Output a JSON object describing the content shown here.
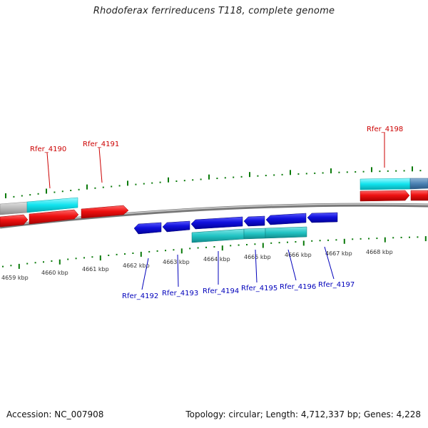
{
  "title": "Rhodoferax ferrireducens T118, complete genome",
  "footer": {
    "accession": "Accession: NC_007908",
    "stats": "Topology: circular; Length: 4,712,337 bp; Genes: 4,228"
  },
  "colors": {
    "backbone": "#8c8c8c",
    "tick": "#0a7a0a",
    "forward_gene": "#ee1111",
    "reverse_gene": "#1111dd",
    "forward_cds": "#11e3ee",
    "reverse_cds": "#22c4c4",
    "pseudo": "#b9b9b9",
    "other": "#4b82b3",
    "label_forward": "#cc0000",
    "label_reverse": "#0000bb"
  },
  "kbp_labels": [
    "4659 kbp",
    "4660 kbp",
    "4661 kbp",
    "4662 kbp",
    "4663 kbp",
    "4664 kbp",
    "4665 kbp",
    "4666 kbp",
    "4667 kbp",
    "4668 kbp"
  ],
  "genes_top": [
    {
      "name": "Rfer_4190"
    },
    {
      "name": "Rfer_4191"
    },
    {
      "name": "Rfer_4198"
    }
  ],
  "genes_bottom": [
    {
      "name": "Rfer_4192"
    },
    {
      "name": "Rfer_4193"
    },
    {
      "name": "Rfer_4194"
    },
    {
      "name": "Rfer_4195"
    },
    {
      "name": "Rfer_4196"
    },
    {
      "name": "Rfer_4197"
    }
  ]
}
